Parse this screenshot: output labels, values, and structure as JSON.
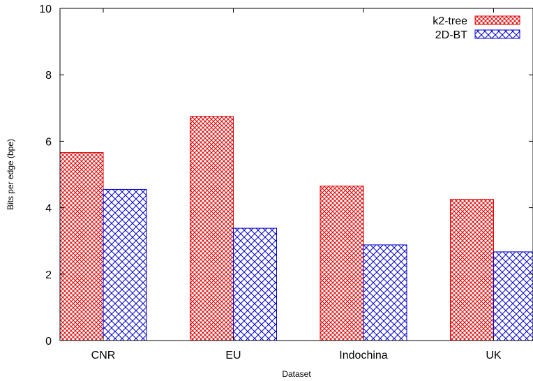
{
  "chart_data": {
    "type": "bar",
    "xlabel": "Dataset",
    "ylabel": "Bits per edge (bpe)",
    "categories": [
      "CNR",
      "EU",
      "Indochina",
      "UK"
    ],
    "series": [
      {
        "name": "k2-tree",
        "values": [
          5.66,
          6.75,
          4.65,
          4.25
        ],
        "color": "#e00000",
        "pattern": "crosshatch"
      },
      {
        "name": "2D-BT",
        "values": [
          4.55,
          3.38,
          2.88,
          2.67
        ],
        "color": "#0000d0",
        "pattern": "crosshatch-wide"
      }
    ],
    "ylim": [
      0,
      10
    ],
    "yticks": [
      "0",
      "2",
      "4",
      "6",
      "8",
      "10"
    ],
    "legend_position": "top-right",
    "grid": false
  }
}
